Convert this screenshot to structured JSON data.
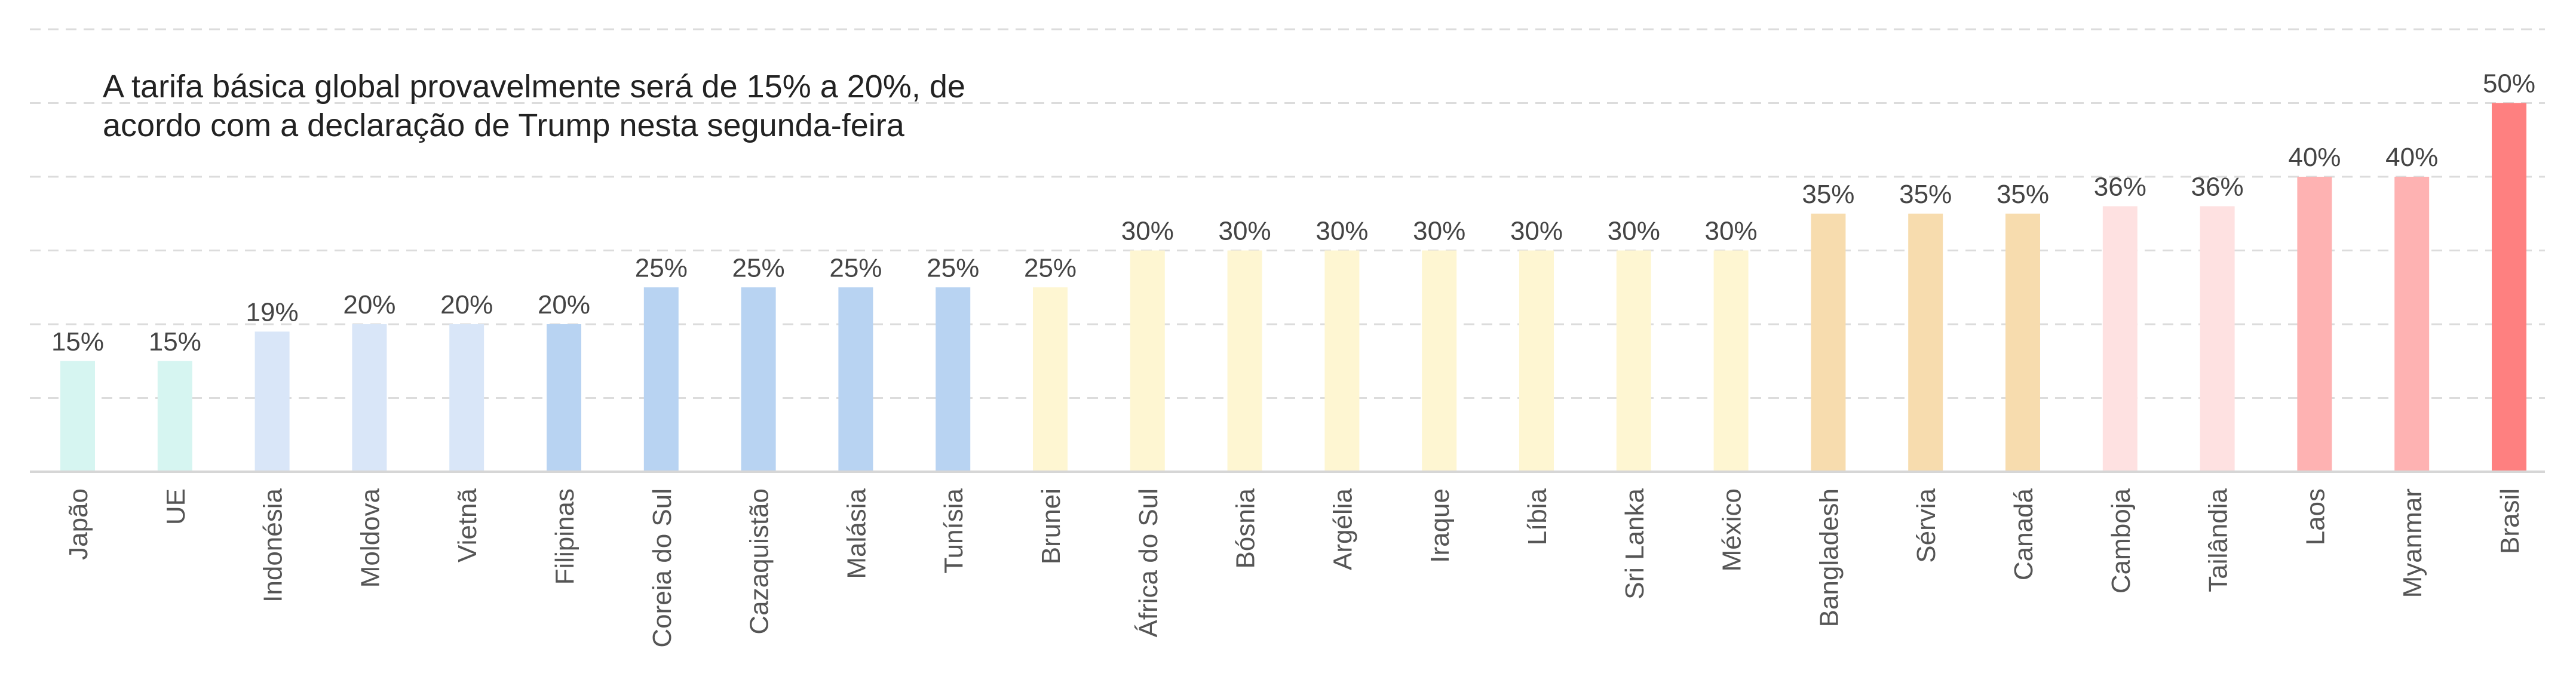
{
  "chart_data": {
    "type": "bar",
    "title": "A tarifa básica global provavelmente será de 15% a 20%, de acordo com a declaração de Trump nesta segunda-feira",
    "title_lines": [
      "A tarifa básica global provavelmente será de 15% a 20%, de",
      "acordo com a declaração de Trump nesta segunda-feira"
    ],
    "xlabel": "",
    "ylabel": "",
    "ylim": [
      0,
      60
    ],
    "grid": true,
    "gridlines": [
      10,
      20,
      30,
      40,
      50,
      60
    ],
    "categories": [
      "Japão",
      "UE",
      "Indonésia",
      "Moldova",
      "Vietnã",
      "Filipinas",
      "Coreia do Sul",
      "Cazaquistão",
      "Malásia",
      "Tunísia",
      "Brunei",
      "África do Sul",
      "Bósnia",
      "Argélia",
      "Iraque",
      "Líbia",
      "Sri Lanka",
      "México",
      "Bangladesh",
      "Sérvia",
      "Canadá",
      "Camboja",
      "Tailândia",
      "Laos",
      "Myanmar",
      "Brasil"
    ],
    "values": [
      15,
      15,
      19,
      20,
      20,
      20,
      25,
      25,
      25,
      25,
      25,
      30,
      30,
      30,
      30,
      30,
      30,
      30,
      35,
      35,
      35,
      36,
      36,
      40,
      40,
      50
    ],
    "value_labels": [
      "15%",
      "15%",
      "19%",
      "20%",
      "20%",
      "20%",
      "25%",
      "25%",
      "25%",
      "25%",
      "25%",
      "30%",
      "30%",
      "30%",
      "30%",
      "30%",
      "30%",
      "30%",
      "35%",
      "35%",
      "35%",
      "36%",
      "36%",
      "40%",
      "40%",
      "50%"
    ],
    "colors": [
      "#d6f5f1",
      "#d6f5f1",
      "#d9e6f8",
      "#d9e6f8",
      "#d9e6f8",
      "#b8d3f2",
      "#b8d3f2",
      "#b8d3f2",
      "#b8d3f2",
      "#b8d3f2",
      "#fef6d2",
      "#fef6d2",
      "#fef6d2",
      "#fef6d2",
      "#fef6d2",
      "#fef6d2",
      "#fef6d2",
      "#fef6d2",
      "#f7dcae",
      "#f7dcae",
      "#f7dcae",
      "#fee1e1",
      "#fee1e1",
      "#feb2b2",
      "#feb2b2",
      "#fe8080"
    ]
  }
}
